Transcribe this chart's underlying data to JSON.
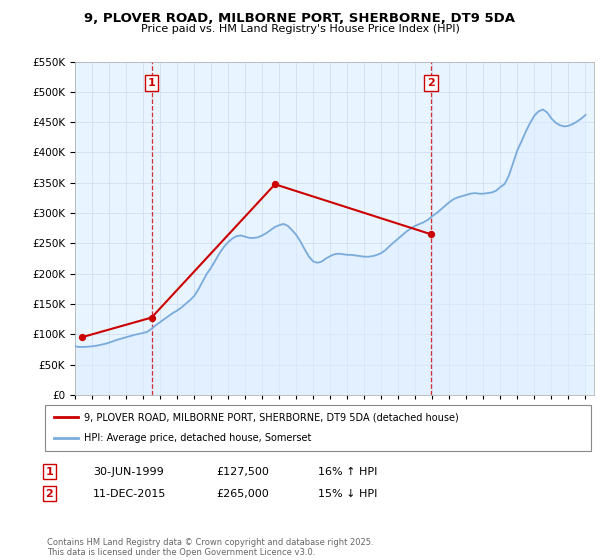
{
  "title": "9, PLOVER ROAD, MILBORNE PORT, SHERBORNE, DT9 5DA",
  "subtitle": "Price paid vs. HM Land Registry's House Price Index (HPI)",
  "ylim": [
    0,
    550000
  ],
  "xlim_start": 1995.0,
  "xlim_end": 2025.5,
  "marker1": {
    "year": 1999.5,
    "label": "1",
    "date": "30-JUN-1999",
    "price": "£127,500",
    "hpi": "16% ↑ HPI"
  },
  "marker2": {
    "year": 2015.92,
    "label": "2",
    "date": "11-DEC-2015",
    "price": "£265,000",
    "hpi": "15% ↓ HPI"
  },
  "legend_line1": "9, PLOVER ROAD, MILBORNE PORT, SHERBORNE, DT9 5DA (detached house)",
  "legend_line2": "HPI: Average price, detached house, Somerset",
  "footnote": "Contains HM Land Registry data © Crown copyright and database right 2025.\nThis data is licensed under the Open Government Licence v3.0.",
  "line_color_red": "#cc0000",
  "line_color_blue": "#7aabdb",
  "fill_color_blue": "#ddeeff",
  "dashed_line_color": "#cc0000",
  "hpi_data": {
    "years": [
      1995.0,
      1995.25,
      1995.5,
      1995.75,
      1996.0,
      1996.25,
      1996.5,
      1996.75,
      1997.0,
      1997.25,
      1997.5,
      1997.75,
      1998.0,
      1998.25,
      1998.5,
      1998.75,
      1999.0,
      1999.25,
      1999.5,
      1999.75,
      2000.0,
      2000.25,
      2000.5,
      2000.75,
      2001.0,
      2001.25,
      2001.5,
      2001.75,
      2002.0,
      2002.25,
      2002.5,
      2002.75,
      2003.0,
      2003.25,
      2003.5,
      2003.75,
      2004.0,
      2004.25,
      2004.5,
      2004.75,
      2005.0,
      2005.25,
      2005.5,
      2005.75,
      2006.0,
      2006.25,
      2006.5,
      2006.75,
      2007.0,
      2007.25,
      2007.5,
      2007.75,
      2008.0,
      2008.25,
      2008.5,
      2008.75,
      2009.0,
      2009.25,
      2009.5,
      2009.75,
      2010.0,
      2010.25,
      2010.5,
      2010.75,
      2011.0,
      2011.25,
      2011.5,
      2011.75,
      2012.0,
      2012.25,
      2012.5,
      2012.75,
      2013.0,
      2013.25,
      2013.5,
      2013.75,
      2014.0,
      2014.25,
      2014.5,
      2014.75,
      2015.0,
      2015.25,
      2015.5,
      2015.75,
      2016.0,
      2016.25,
      2016.5,
      2016.75,
      2017.0,
      2017.25,
      2017.5,
      2017.75,
      2018.0,
      2018.25,
      2018.5,
      2018.75,
      2019.0,
      2019.25,
      2019.5,
      2019.75,
      2020.0,
      2020.25,
      2020.5,
      2020.75,
      2021.0,
      2021.25,
      2021.5,
      2021.75,
      2022.0,
      2022.25,
      2022.5,
      2022.75,
      2023.0,
      2023.25,
      2023.5,
      2023.75,
      2024.0,
      2024.25,
      2024.5,
      2024.75,
      2025.0
    ],
    "values": [
      80000,
      79000,
      79000,
      79500,
      80000,
      81000,
      82500,
      84000,
      86000,
      88500,
      91000,
      93000,
      95000,
      97000,
      99000,
      100500,
      102000,
      104000,
      109000,
      115000,
      120000,
      125000,
      130000,
      135000,
      139000,
      144000,
      150000,
      156000,
      163000,
      174000,
      187000,
      200000,
      210000,
      222000,
      234000,
      244000,
      252000,
      258000,
      262000,
      263000,
      261000,
      259000,
      259000,
      260000,
      263000,
      267000,
      272000,
      277000,
      280000,
      282000,
      279000,
      272000,
      264000,
      253000,
      240000,
      228000,
      220000,
      218000,
      220000,
      225000,
      229000,
      232000,
      233000,
      232000,
      231000,
      231000,
      230000,
      229000,
      228000,
      228000,
      229000,
      231000,
      234000,
      239000,
      246000,
      252000,
      258000,
      264000,
      270000,
      275000,
      279000,
      282000,
      285000,
      289000,
      295000,
      300000,
      306000,
      312000,
      318000,
      323000,
      326000,
      328000,
      330000,
      332000,
      333000,
      332000,
      332000,
      333000,
      334000,
      337000,
      343000,
      348000,
      362000,
      383000,
      404000,
      419000,
      435000,
      449000,
      461000,
      468000,
      471000,
      466000,
      456000,
      449000,
      445000,
      443000,
      444000,
      447000,
      451000,
      456000,
      462000
    ]
  },
  "price_data": {
    "years": [
      1995.4,
      1999.5,
      2006.75,
      2015.92
    ],
    "values": [
      95000,
      127500,
      347500,
      265000
    ]
  },
  "background_color": "#ffffff",
  "grid_color": "#ccddee",
  "ax_bg_color": "#e8f4ff"
}
